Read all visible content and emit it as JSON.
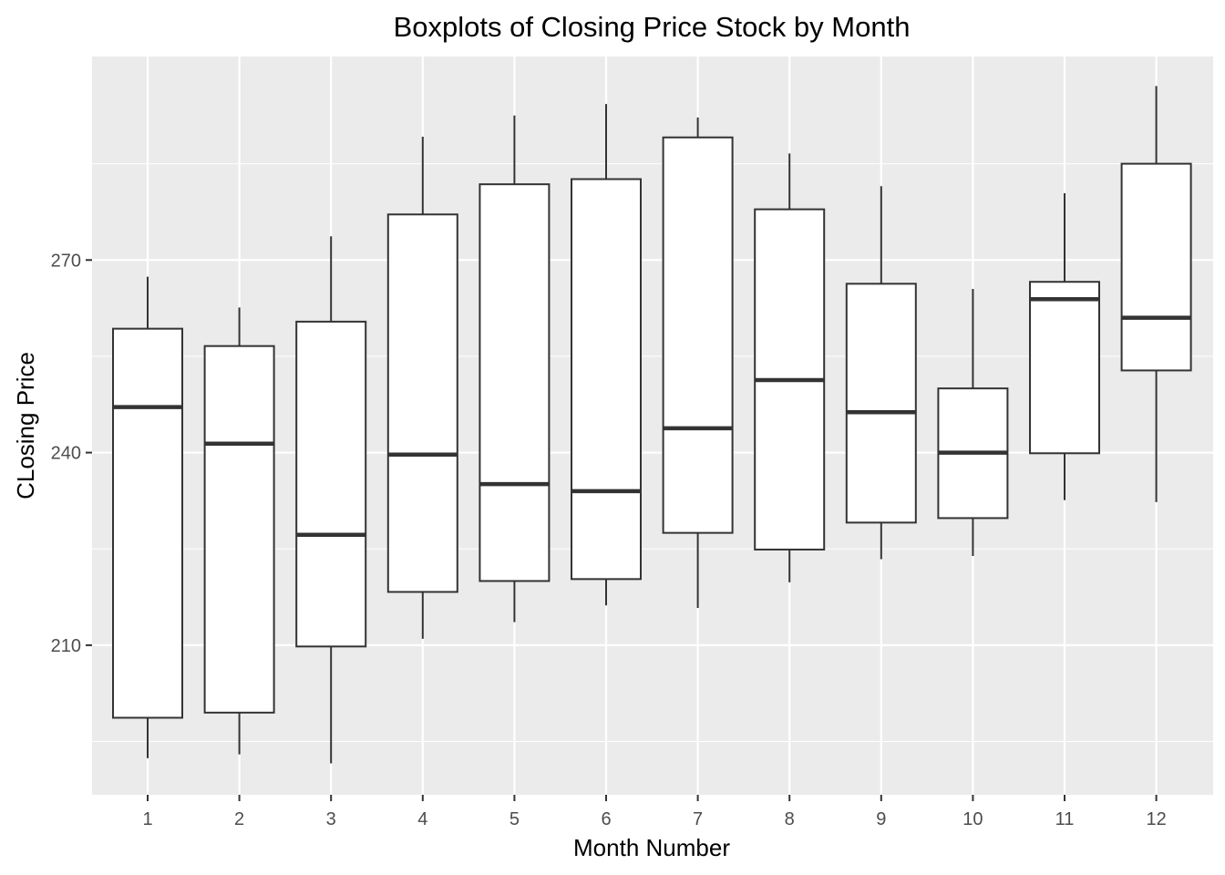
{
  "chart_data": {
    "type": "boxplot",
    "title": "Boxplots of Closing Price Stock by Month",
    "xlabel": "Month Number",
    "ylabel": "CLosing Price",
    "ylim": [
      186.7,
      301.7
    ],
    "yticks": [
      210,
      240,
      270
    ],
    "categories": [
      "1",
      "2",
      "3",
      "4",
      "5",
      "6",
      "7",
      "8",
      "9",
      "10",
      "11",
      "12"
    ],
    "boxes": [
      {
        "month": "1",
        "min": 192.4,
        "q1": 198.7,
        "median": 247.1,
        "q3": 259.3,
        "max": 267.4
      },
      {
        "month": "2",
        "min": 193.0,
        "q1": 199.5,
        "median": 241.4,
        "q3": 256.6,
        "max": 262.6
      },
      {
        "month": "3",
        "min": 191.6,
        "q1": 209.8,
        "median": 227.2,
        "q3": 260.4,
        "max": 273.7
      },
      {
        "month": "4",
        "min": 211.0,
        "q1": 218.3,
        "median": 239.7,
        "q3": 277.1,
        "max": 289.2
      },
      {
        "month": "5",
        "min": 213.6,
        "q1": 220.0,
        "median": 235.1,
        "q3": 281.8,
        "max": 292.5
      },
      {
        "month": "6",
        "min": 216.2,
        "q1": 220.3,
        "median": 234.0,
        "q3": 282.6,
        "max": 294.3
      },
      {
        "month": "7",
        "min": 215.8,
        "q1": 227.5,
        "median": 243.8,
        "q3": 289.1,
        "max": 292.2
      },
      {
        "month": "8",
        "min": 219.8,
        "q1": 224.9,
        "median": 251.3,
        "q3": 277.9,
        "max": 286.6
      },
      {
        "month": "9",
        "min": 223.4,
        "q1": 229.1,
        "median": 246.3,
        "q3": 266.3,
        "max": 281.5
      },
      {
        "month": "10",
        "min": 223.9,
        "q1": 229.8,
        "median": 240.0,
        "q3": 250.0,
        "max": 265.5
      },
      {
        "month": "11",
        "min": 232.6,
        "q1": 239.9,
        "median": 263.9,
        "q3": 266.6,
        "max": 280.4
      },
      {
        "month": "12",
        "min": 232.3,
        "q1": 252.8,
        "median": 261.0,
        "q3": 285.0,
        "max": 297.1
      }
    ],
    "grid": true,
    "background": "#ebebeb",
    "gridline_color": "#ffffff",
    "box_fill": "#ffffff",
    "box_stroke": "#333333"
  }
}
